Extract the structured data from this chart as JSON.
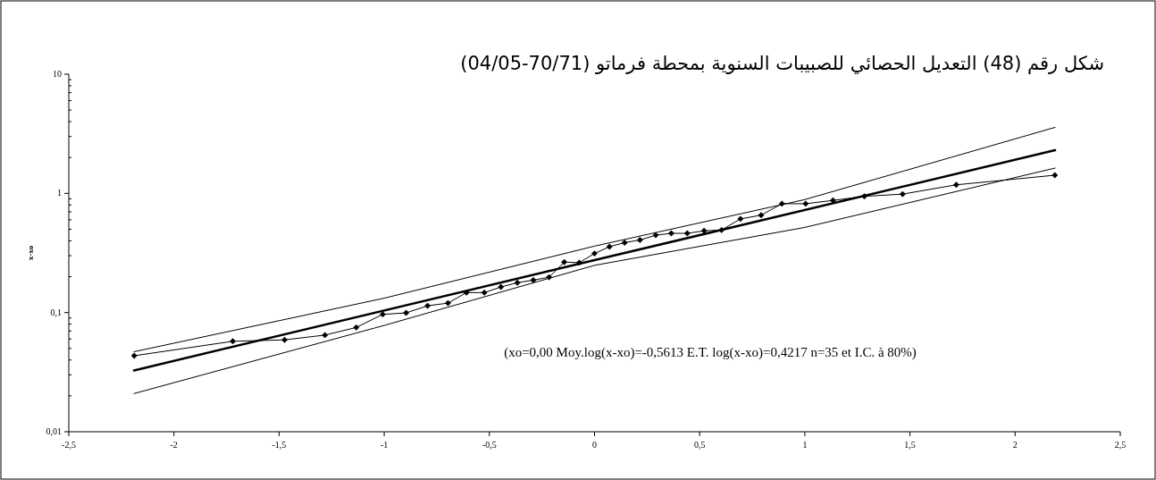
{
  "chart_data": {
    "type": "line",
    "title": "شكل رقم (48) التعديل الحصائي للصبيبات السنوية بمحطة فرماتو (70/71-04/05)",
    "ylabel": "x-xo",
    "log": "y",
    "grid": false,
    "annotations": [
      "(xo=0,00 Moy.log(x-xo)=-0,5613 E.T. log(x-xo)=0,4217 n=35 et I.C. à 80%)"
    ],
    "xlim": [
      -2.5,
      2.5
    ],
    "xticks": [
      {
        "value": -2.5,
        "label": "-2,5"
      },
      -2,
      {
        "value": -1.5,
        "label": "-1,5"
      },
      -1,
      {
        "value": -0.5,
        "label": "-0,5"
      },
      0,
      {
        "value": 0.5,
        "label": "0,5"
      },
      1,
      {
        "value": 1.5,
        "label": "1,5"
      },
      2,
      {
        "value": 2.5,
        "label": "2,5"
      }
    ],
    "ylim": [
      0.01,
      10
    ],
    "yticks": [
      {
        "value": 0.01,
        "label": "0,01"
      },
      {
        "value": 0.1,
        "label": "0,1"
      },
      1,
      10
    ],
    "series": [
      {
        "color": "#000000",
        "marker": "diamond",
        "line_style": "solid",
        "x": [
          -2.189,
          -1.72,
          -1.474,
          -1.282,
          -1.133,
          -1.007,
          -0.896,
          -0.794,
          -0.697,
          -0.609,
          -0.524,
          -0.445,
          -0.367,
          -0.291,
          -0.216,
          -0.144,
          -0.073,
          0,
          0.071,
          0.143,
          0.216,
          0.291,
          0.365,
          0.441,
          0.521,
          0.604,
          0.694,
          0.792,
          0.891,
          1.004,
          1.134,
          1.283,
          1.465,
          1.72,
          2.189
        ],
        "values": [
          0.0434,
          0.0574,
          0.059,
          0.0647,
          0.075,
          0.0966,
          0.0993,
          0.114,
          0.12,
          0.147,
          0.147,
          0.164,
          0.178,
          0.187,
          0.198,
          0.265,
          0.262,
          0.313,
          0.357,
          0.386,
          0.406,
          0.446,
          0.462,
          0.462,
          0.485,
          0.492,
          0.611,
          0.656,
          0.819,
          0.819,
          0.873,
          0.944,
          0.986,
          1.18,
          1.42
        ]
      },
      {
        "color": "#000000",
        "marker": "none",
        "line_style": "solid",
        "x": [
          -2.19,
          0,
          2.19
        ],
        "values": [
          0.0327,
          0.275,
          2.3
        ]
      },
      {
        "color": "#000000",
        "marker": "none",
        "line_style": "solid",
        "x": [
          -2.19,
          -1,
          0,
          1,
          2.19
        ],
        "values": [
          0.0469,
          0.132,
          0.361,
          0.887,
          3.58
        ]
      },
      {
        "color": "#000000",
        "marker": "none",
        "line_style": "solid",
        "x": [
          -2.19,
          -1,
          0,
          1,
          2.19
        ],
        "values": [
          0.0209,
          0.078,
          0.249,
          0.518,
          1.63
        ]
      }
    ]
  }
}
